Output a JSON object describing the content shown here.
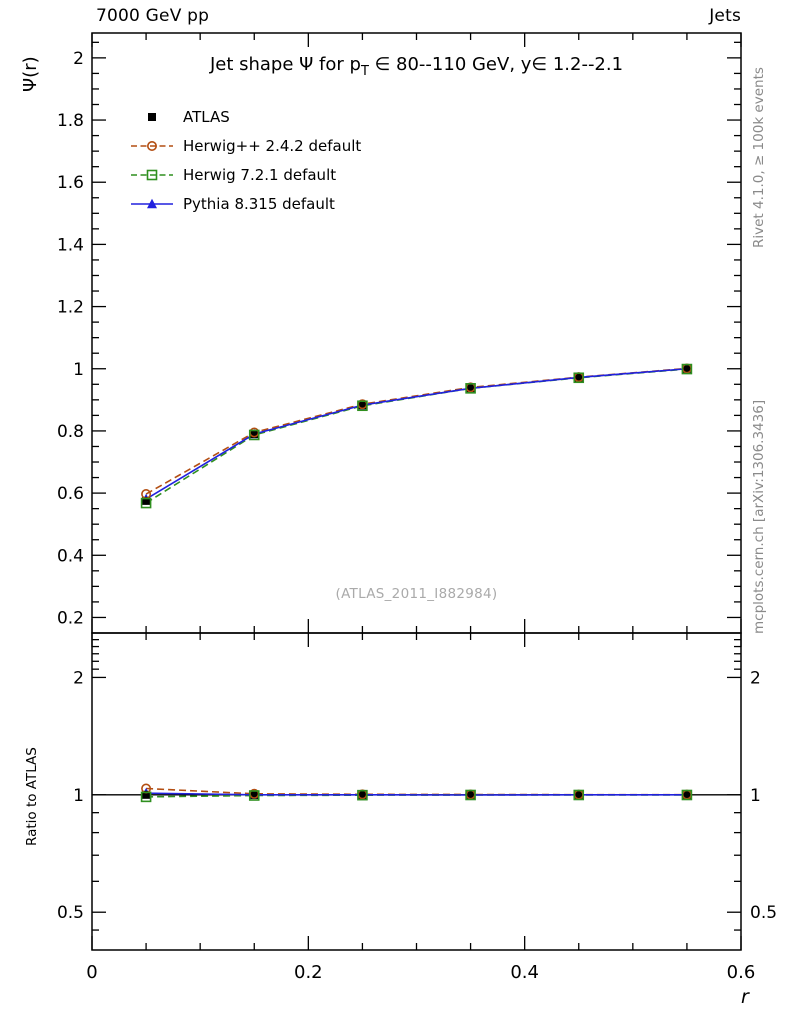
{
  "header": {
    "left": "7000 GeV pp",
    "right": "Jets"
  },
  "side_notes": {
    "top": "Rivet 4.1.0, ≥ 100k events",
    "bottom": "mcplots.cern.ch [arXiv:1306.3436]"
  },
  "watermark": "(ATLAS_2011_I882984)",
  "chart_data": {
    "type": "line",
    "title": {
      "pre": "Jet shape Ψ for p",
      "sub": "T",
      "post": " ∈ 80--110 GeV, y∈ 1.2--2.1"
    },
    "xlabel": "r",
    "ylabel_main": "Ψ(r)",
    "ylabel_ratio": "Ratio to ATLAS",
    "xlim": [
      0,
      0.6
    ],
    "ylim_main": [
      0.15,
      2.08
    ],
    "ylim_ratio": [
      0.4,
      2.6
    ],
    "ratio_scale": "log",
    "grid": false,
    "legend_position": "top-left",
    "x": [
      0.05,
      0.15,
      0.25,
      0.35,
      0.45,
      0.55
    ],
    "x_ticks": {
      "values": [
        0,
        0.2,
        0.4,
        0.6
      ],
      "labels": [
        "0",
        "0.2",
        "0.4",
        "0.6"
      ],
      "minor_step": 0.05
    },
    "y_ticks_main": {
      "values": [
        0.2,
        0.4,
        0.6,
        0.8,
        1.0,
        1.2,
        1.4,
        1.6,
        1.8,
        2.0
      ],
      "labels": [
        "0.2",
        "0.4",
        "0.6",
        "0.8",
        "1",
        "1.2",
        "1.4",
        "1.6",
        "1.8",
        "2"
      ]
    },
    "y_ticks_ratio": {
      "values": [
        0.5,
        1,
        2
      ],
      "labels": [
        "0.5",
        "1",
        "2"
      ],
      "minors": [
        0.45,
        0.6,
        0.7,
        0.8,
        0.9,
        2.1,
        2.2,
        2.3,
        2.4,
        2.5
      ]
    },
    "series": [
      {
        "name": "ATLAS",
        "color": "#000000",
        "marker": "square-filled",
        "line": "none",
        "values": [
          0.575,
          0.79,
          0.883,
          0.938,
          0.972,
          1.0
        ],
        "err": [
          0.012,
          0.008,
          0.006,
          0.005,
          0.004,
          0.004
        ],
        "ratio": [
          1,
          1,
          1,
          1,
          1,
          1
        ]
      },
      {
        "name": "Herwig++ 2.4.2 default",
        "color": "#b34e12",
        "marker": "circle-open",
        "line": "dashed",
        "values": [
          0.597,
          0.795,
          0.886,
          0.94,
          0.973,
          1.001
        ],
        "ratio": [
          1.038,
          1.006,
          1.003,
          1.002,
          1.001,
          1.001
        ]
      },
      {
        "name": "Herwig 7.2.1 default",
        "color": "#2f8f1f",
        "marker": "square-open",
        "line": "dashed",
        "values": [
          0.568,
          0.787,
          0.881,
          0.937,
          0.971,
          0.999
        ],
        "ratio": [
          0.988,
          0.996,
          0.998,
          0.999,
          0.999,
          0.999
        ]
      },
      {
        "name": "Pythia 8.315 default",
        "color": "#2121de",
        "marker": "triangle-filled",
        "line": "solid",
        "values": [
          0.581,
          0.79,
          0.883,
          0.937,
          0.972,
          1.0
        ],
        "ratio": [
          1.01,
          1.0,
          1.0,
          0.999,
          1.0,
          1.0
        ]
      }
    ]
  }
}
